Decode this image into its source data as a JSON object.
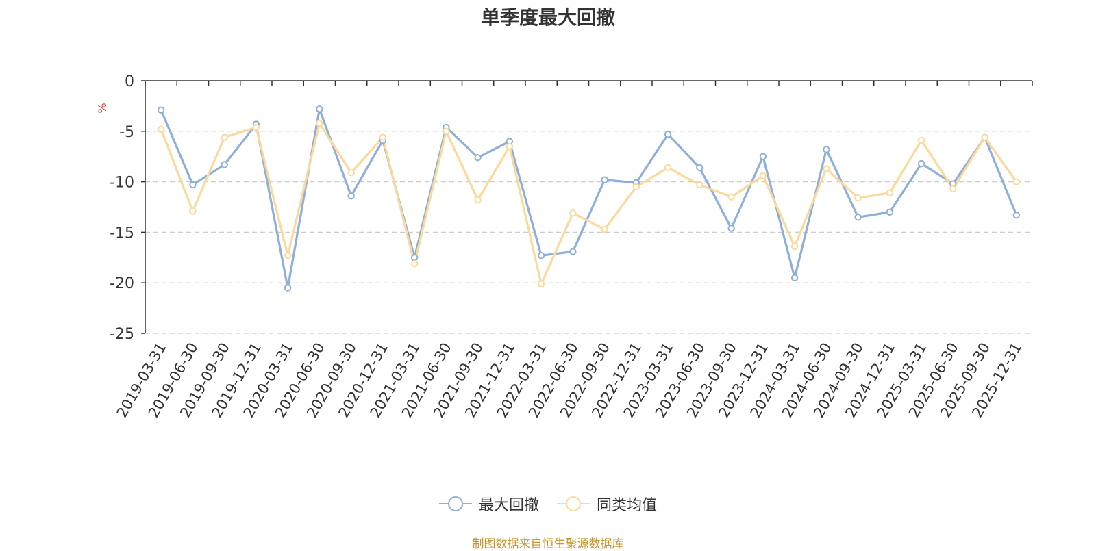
{
  "title": "单季度最大回撤",
  "unit_label": "%",
  "source": "制图数据来自恒生聚源数据库",
  "colors": {
    "series_max_drawdown": "#8eaedb",
    "series_peer_avg": "#fcd99b",
    "unit_label": "#e8392c",
    "source": "#c8962f"
  },
  "chart_data": {
    "type": "line",
    "title": "单季度最大回撤",
    "ylabel": "%",
    "xlabel": "",
    "ylim": [
      -25,
      0
    ],
    "yticks": [
      0,
      -5,
      -10,
      -15,
      -20,
      -25
    ],
    "grid": true,
    "legend_position": "bottom-center",
    "categories": [
      "2019-03-31",
      "2019-06-30",
      "2019-09-30",
      "2019-12-31",
      "2020-03-31",
      "2020-06-30",
      "2020-09-30",
      "2020-12-31",
      "2021-03-31",
      "2021-06-30",
      "2021-09-30",
      "2021-12-31",
      "2022-03-31",
      "2022-06-30",
      "2022-09-30",
      "2022-12-31",
      "2023-03-31",
      "2023-06-30",
      "2023-09-30",
      "2023-12-31",
      "2024-03-31",
      "2024-06-30",
      "2024-09-30",
      "2024-12-31",
      "2025-03-31",
      "2025-06-30",
      "2025-09-30",
      "2025-12-31"
    ],
    "series": [
      {
        "name": "最大回撤",
        "color": "#8eaedb",
        "values": [
          -2.9,
          -10.3,
          -8.3,
          -4.3,
          -20.5,
          -2.8,
          -11.4,
          -5.9,
          -17.5,
          -4.6,
          -7.6,
          -6.0,
          -17.3,
          -16.9,
          -9.8,
          -10.1,
          -5.3,
          -8.6,
          -14.6,
          -7.5,
          -19.5,
          -6.8,
          -13.5,
          -13.0,
          -8.2,
          -10.2,
          -5.6,
          -13.3
        ]
      },
      {
        "name": "同类均值",
        "color": "#fcd99b",
        "values": [
          -4.8,
          -12.9,
          -5.6,
          -4.6,
          -17.3,
          -4.2,
          -9.1,
          -5.6,
          -18.1,
          -5.0,
          -11.8,
          -6.5,
          -20.1,
          -13.1,
          -14.7,
          -10.5,
          -8.6,
          -10.3,
          -11.5,
          -9.4,
          -16.4,
          -8.7,
          -11.6,
          -11.1,
          -5.9,
          -10.7,
          -5.6,
          -10.0
        ]
      }
    ]
  }
}
